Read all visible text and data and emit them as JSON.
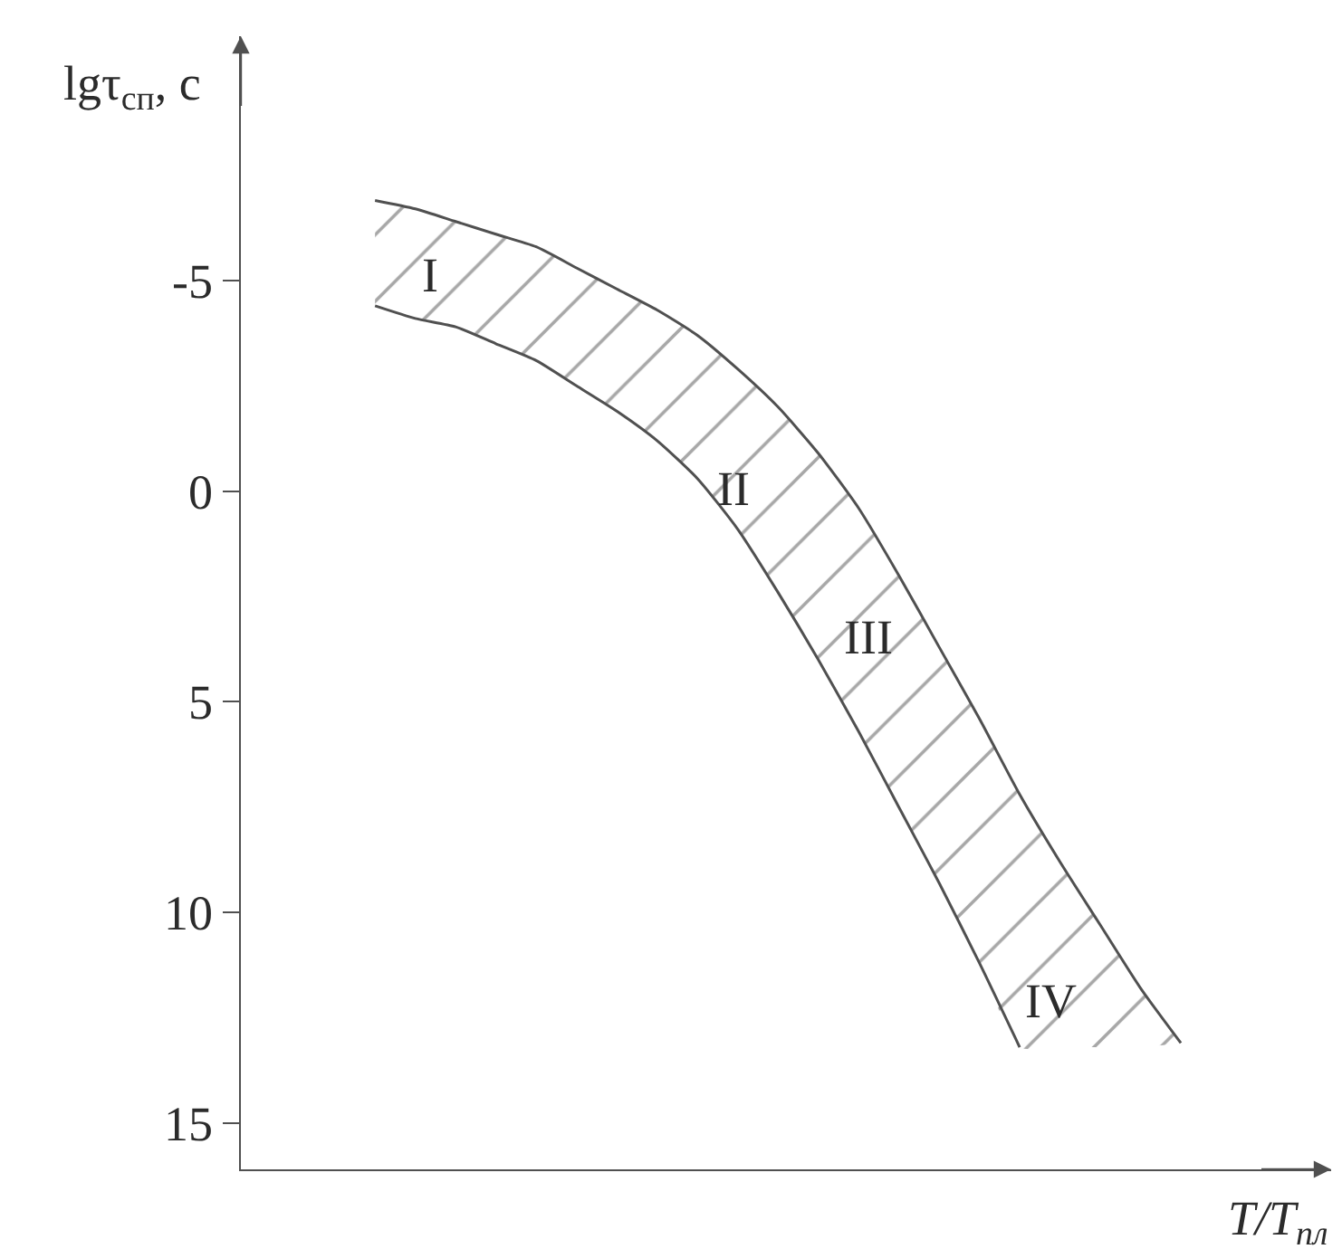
{
  "chart_data": {
    "type": "line",
    "xlabel": "T/T$_{пл}$",
    "ylabel": "lgτ$_{сп}$, с",
    "categories": [
      null,
      null,
      null,
      null,
      null,
      null,
      null,
      null,
      null,
      null,
      null,
      null,
      null,
      null,
      null,
      null,
      null,
      null,
      null,
      null,
      null
    ],
    "series": [
      {
        "color": "#505050",
        "values": [
          -6.9,
          -6.7,
          -6.4,
          -6.1,
          -5.8,
          -5.3,
          -4.8,
          -4.3,
          -3.7,
          -2.9,
          -2.0,
          -0.9,
          0.4,
          2.0,
          3.7,
          5.4,
          7.2,
          8.8,
          10.3,
          11.8,
          13.1
        ],
        "lower": [
          -4.4,
          -4.1,
          -3.9,
          -3.5,
          -3.1,
          -2.5,
          -1.9,
          -1.2,
          -0.3,
          0.9,
          2.4,
          4.0,
          5.7,
          7.5,
          9.3,
          11.2,
          13.2,
          13.2,
          13.2,
          13.2,
          13.1
        ],
        "upper": [
          -6.9,
          -6.7,
          -6.4,
          -6.1,
          -5.8,
          -5.3,
          -4.8,
          -4.3,
          -3.7,
          -2.9,
          -2.0,
          -0.9,
          0.4,
          2.0,
          3.7,
          5.4,
          7.2,
          8.8,
          10.3,
          11.8,
          13.1
        ]
      },
      {
        "color": "#505050",
        "values": [
          -4.4,
          -4.1,
          -3.9,
          -3.5,
          -3.1,
          -2.5,
          -1.9,
          -1.2,
          -0.3,
          0.9,
          2.4,
          4.0,
          5.7,
          7.5,
          9.3,
          11.2,
          13.2,
          null,
          null,
          null,
          null
        ]
      }
    ],
    "ylim": [
      16.1,
      -10.8
    ],
    "yticks": [
      -5,
      0,
      5,
      10,
      15
    ],
    "tick_labels": "y",
    "annotations": [
      "I",
      "II",
      "III",
      "IV"
    ]
  }
}
